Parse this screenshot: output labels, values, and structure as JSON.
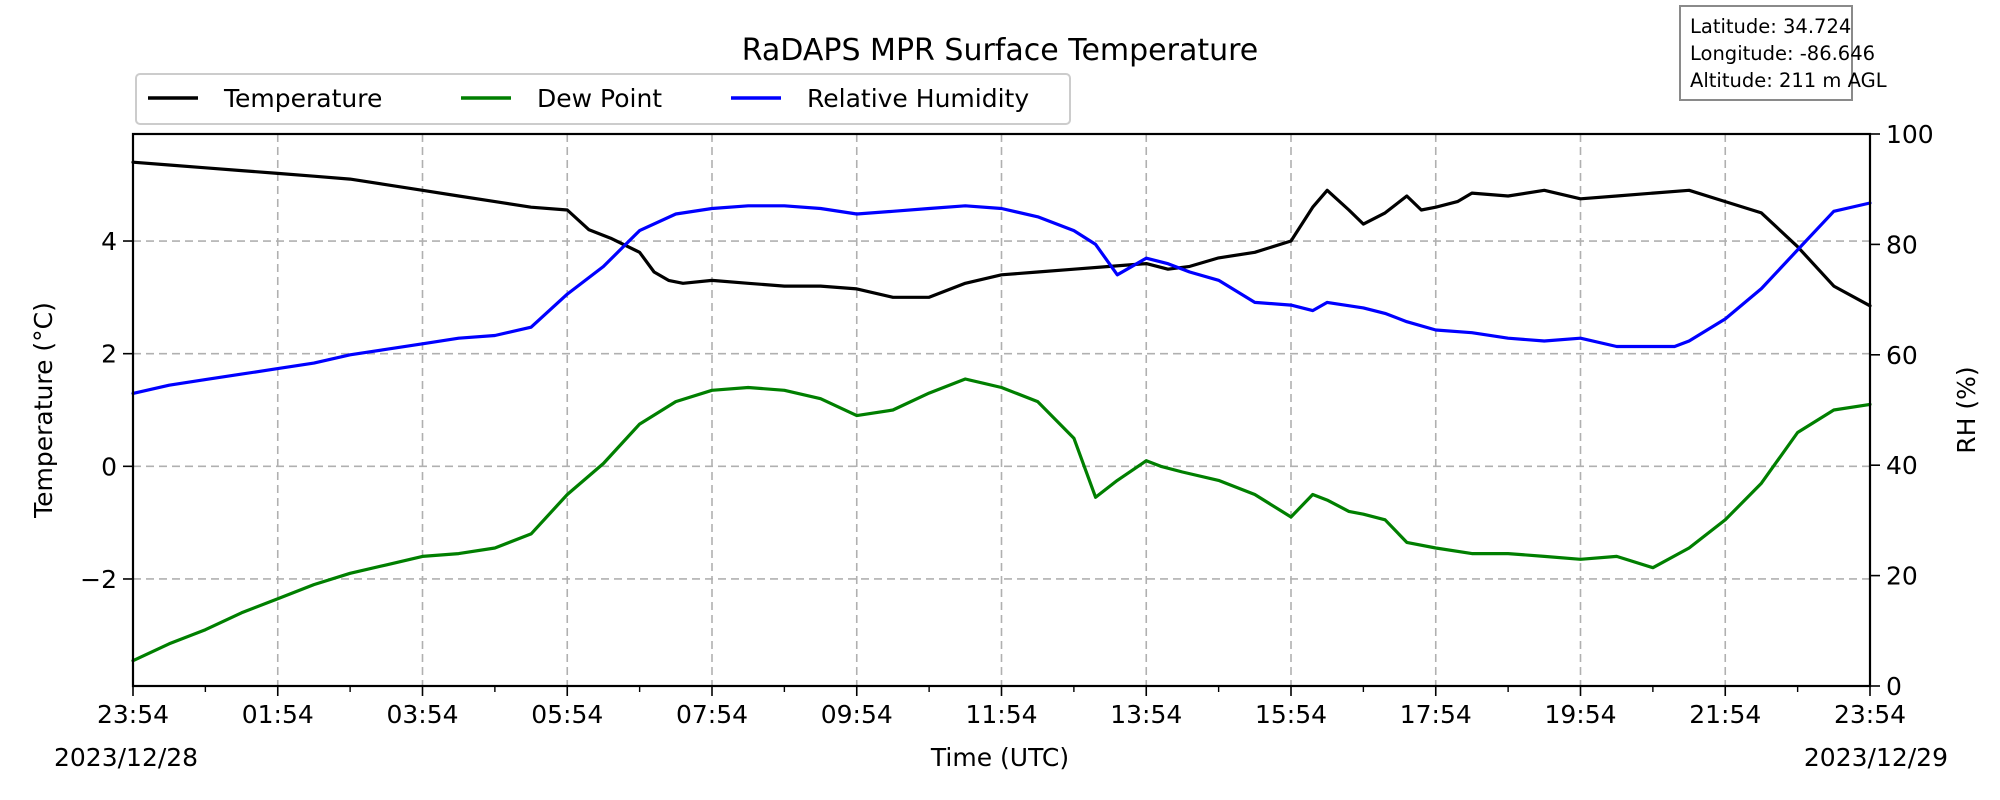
{
  "chart_data": {
    "type": "line",
    "title": "RaDAPS MPR Surface Temperature",
    "xlabel": "Time (UTC)",
    "ylabel_left": "Temperature ($^\\circ$C)",
    "ylabel_left_display": "Temperature (°C)",
    "ylabel_right": "RH (%)",
    "x_start_date": "2023/12/28",
    "x_end_date": "2023/12/29",
    "x_tick_labels": [
      "23:54",
      "01:54",
      "03:54",
      "05:54",
      "07:54",
      "09:54",
      "11:54",
      "13:54",
      "15:54",
      "17:54",
      "19:54",
      "21:54",
      "23:54"
    ],
    "x_hours": [
      0,
      24
    ],
    "ylim_left": [
      -3.9,
      5.9
    ],
    "ylim_right": [
      0,
      100
    ],
    "y_left_ticks": [
      -2,
      0,
      2,
      4
    ],
    "y_left_tick_labels": [
      "−2",
      "0",
      "2",
      "4"
    ],
    "y_right_ticks": [
      0,
      20,
      40,
      60,
      80,
      100
    ],
    "grid": true,
    "legend_placement": "top-left, above plot",
    "series": [
      {
        "name": "Temperature",
        "axis": "left",
        "color": "#000000",
        "x": [
          0,
          0.5,
          1,
          1.5,
          2,
          2.5,
          3,
          3.5,
          4,
          4.5,
          5,
          5.5,
          6,
          6.3,
          6.6,
          7,
          7.2,
          7.4,
          7.6,
          8,
          8.5,
          9,
          9.5,
          10,
          10.5,
          11,
          11.5,
          12,
          12.5,
          13,
          13.5,
          14,
          14.3,
          14.6,
          15,
          15.5,
          16,
          16.3,
          16.5,
          16.8,
          17,
          17.3,
          17.6,
          17.8,
          18,
          18.3,
          18.5,
          19,
          19.5,
          20,
          20.5,
          21,
          21.5,
          22,
          22.5,
          23,
          23.5,
          24
        ],
        "y": [
          5.4,
          5.35,
          5.3,
          5.25,
          5.2,
          5.15,
          5.1,
          5.0,
          4.9,
          4.8,
          4.7,
          4.6,
          4.55,
          4.2,
          4.05,
          3.8,
          3.45,
          3.3,
          3.25,
          3.3,
          3.25,
          3.2,
          3.2,
          3.15,
          3.0,
          3.0,
          3.25,
          3.4,
          3.45,
          3.5,
          3.55,
          3.6,
          3.5,
          3.55,
          3.7,
          3.8,
          4.0,
          4.6,
          4.9,
          4.55,
          4.3,
          4.5,
          4.8,
          4.55,
          4.6,
          4.7,
          4.85,
          4.8,
          4.9,
          4.75,
          4.8,
          4.85,
          4.9,
          4.7,
          4.5,
          3.9,
          3.2,
          2.85
        ]
      },
      {
        "name": "Dew Point",
        "axis": "left",
        "color": "#007f00",
        "x": [
          0,
          0.5,
          1,
          1.5,
          2,
          2.5,
          3,
          3.5,
          4,
          4.5,
          5,
          5.5,
          6,
          6.5,
          7,
          7.5,
          8,
          8.5,
          9,
          9.5,
          10,
          10.5,
          11,
          11.5,
          12,
          12.5,
          13,
          13.3,
          13.6,
          14,
          14.2,
          14.5,
          15,
          15.5,
          16,
          16.3,
          16.5,
          16.8,
          17,
          17.3,
          17.6,
          18,
          18.5,
          19,
          19.5,
          20,
          20.5,
          21,
          21.5,
          22,
          22.5,
          23,
          23.5,
          24
        ],
        "y": [
          -3.45,
          -3.15,
          -2.9,
          -2.6,
          -2.35,
          -2.1,
          -1.9,
          -1.75,
          -1.6,
          -1.55,
          -1.45,
          -1.2,
          -0.5,
          0.05,
          0.75,
          1.15,
          1.35,
          1.4,
          1.35,
          1.2,
          0.9,
          1.0,
          1.3,
          1.55,
          1.4,
          1.15,
          0.5,
          -0.55,
          -0.25,
          0.1,
          0.0,
          -0.1,
          -0.25,
          -0.5,
          -0.9,
          -0.5,
          -0.6,
          -0.8,
          -0.85,
          -0.95,
          -1.35,
          -1.45,
          -1.55,
          -1.55,
          -1.6,
          -1.65,
          -1.6,
          -1.8,
          -1.45,
          -0.95,
          -0.3,
          0.6,
          1.0,
          1.1
        ]
      },
      {
        "name": "Relative Humidity",
        "axis": "right",
        "color": "#0000ff",
        "x": [
          0,
          0.5,
          1,
          1.5,
          2,
          2.5,
          3,
          3.5,
          4,
          4.5,
          5,
          5.5,
          6,
          6.5,
          7,
          7.5,
          8,
          8.5,
          9,
          9.5,
          10,
          10.5,
          11,
          11.5,
          12,
          12.5,
          13,
          13.3,
          13.6,
          14,
          14.3,
          14.6,
          15,
          15.5,
          16,
          16.3,
          16.5,
          17,
          17.3,
          17.6,
          18,
          18.5,
          19,
          19.5,
          20,
          20.5,
          21,
          21.3,
          21.5,
          22,
          22.5,
          23,
          23.5,
          24
        ],
        "y": [
          53,
          54.5,
          55.5,
          56.5,
          57.5,
          58.5,
          60,
          61,
          62,
          63,
          63.5,
          65,
          71,
          76,
          82.5,
          85.5,
          86.5,
          87,
          87,
          86.5,
          85.5,
          86,
          86.5,
          87,
          86.5,
          85,
          82.5,
          80,
          74.5,
          77.5,
          76.5,
          75,
          73.5,
          69.5,
          69,
          68,
          69.5,
          68.5,
          67.5,
          66,
          64.5,
          64,
          63,
          62.5,
          63,
          61.5,
          61.5,
          61.5,
          62.5,
          66.5,
          72,
          79,
          86,
          87.5
        ]
      }
    ]
  },
  "info_box": {
    "latitude": "Latitude: 34.724",
    "longitude": "Longitude: -86.646",
    "altitude": "Altitude: 211 m AGL"
  }
}
